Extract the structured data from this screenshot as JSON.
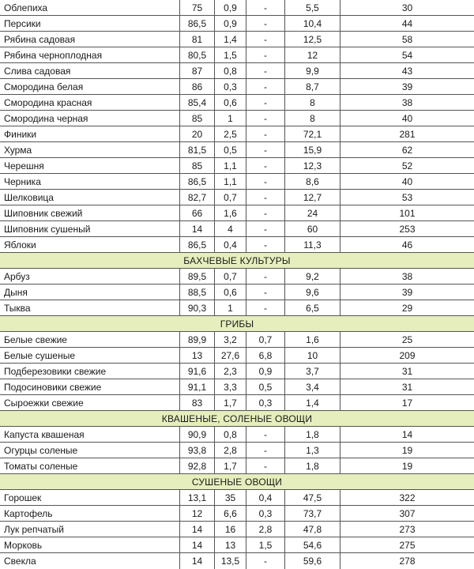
{
  "table": {
    "groups": [
      {
        "title": null,
        "rows": [
          [
            "Облепиха",
            "75",
            "0,9",
            "-",
            "5,5",
            "30"
          ],
          [
            "Персики",
            "86,5",
            "0,9",
            "-",
            "10,4",
            "44"
          ],
          [
            "Рябина садовая",
            "81",
            "1,4",
            "-",
            "12,5",
            "58"
          ],
          [
            "Рябина черноплодная",
            "80,5",
            "1,5",
            "-",
            "12",
            "54"
          ],
          [
            "Слива садовая",
            "87",
            "0,8",
            "-",
            "9,9",
            "43"
          ],
          [
            "Смородина белая",
            "86",
            "0,3",
            "-",
            "8,7",
            "39"
          ],
          [
            "Смородина красная",
            "85,4",
            "0,6",
            "-",
            "8",
            "38"
          ],
          [
            "Смородина черная",
            "85",
            "1",
            "-",
            "8",
            "40"
          ],
          [
            "Финики",
            "20",
            "2,5",
            "-",
            "72,1",
            "281"
          ],
          [
            "Хурма",
            "81,5",
            "0,5",
            "-",
            "15,9",
            "62"
          ],
          [
            "Черешня",
            "85",
            "1,1",
            "-",
            "12,3",
            "52"
          ],
          [
            "Черника",
            "86,5",
            "1,1",
            "-",
            "8,6",
            "40"
          ],
          [
            "Шелковица",
            "82,7",
            "0,7",
            "-",
            "12,7",
            "53"
          ],
          [
            "Шиповник свежий",
            "66",
            "1,6",
            "-",
            "24",
            "101"
          ],
          [
            "Шиповник сушеный",
            "14",
            "4",
            "-",
            "60",
            "253"
          ],
          [
            "Яблоки",
            "86,5",
            "0,4",
            "-",
            "11,3",
            "46"
          ]
        ]
      },
      {
        "title": "БАХЧЕВЫЕ КУЛЬТУРЫ",
        "rows": [
          [
            "Арбуз",
            "89,5",
            "0,7",
            "-",
            "9,2",
            "38"
          ],
          [
            "Дыня",
            "88,5",
            "0,6",
            "-",
            "9,6",
            "39"
          ],
          [
            "Тыква",
            "90,3",
            "1",
            "-",
            "6,5",
            "29"
          ]
        ]
      },
      {
        "title": "ГРИБЫ",
        "rows": [
          [
            "Белые свежие",
            "89,9",
            "3,2",
            "0,7",
            "1,6",
            "25"
          ],
          [
            "Белые сушеные",
            "13",
            "27,6",
            "6,8",
            "10",
            "209"
          ],
          [
            "Подберезовики свежие",
            "91,6",
            "2,3",
            "0,9",
            "3,7",
            "31"
          ],
          [
            "Подосиновики свежие",
            "91,1",
            "3,3",
            "0,5",
            "3,4",
            "31"
          ],
          [
            "Сыроежки свежие",
            "83",
            "1,7",
            "0,3",
            "1,4",
            "17"
          ]
        ]
      },
      {
        "title": "КВАШЕНЫЕ, СОЛЕНЫЕ ОВОЩИ",
        "rows": [
          [
            "Капуста квашеная",
            "90,9",
            "0,8",
            "-",
            "1,8",
            "14"
          ],
          [
            "Огурцы соленые",
            "93,8",
            "2,8",
            "-",
            "1,3",
            "19"
          ],
          [
            "Томаты соленые",
            "92,8",
            "1,7",
            "-",
            "1,8",
            "19"
          ]
        ]
      },
      {
        "title": "СУШЕНЫЕ ОВОЩИ",
        "rows": [
          [
            "Горошек",
            "13,1",
            "35",
            "0,4",
            "47,5",
            "322"
          ],
          [
            "Картофель",
            "12",
            "6,6",
            "0,3",
            "73,7",
            "307"
          ],
          [
            "Лук репчатый",
            "14",
            "16",
            "2,8",
            "47,8",
            "273"
          ],
          [
            "Морковь",
            "14",
            "13",
            "1,5",
            "54,6",
            "275"
          ],
          [
            "Свекла",
            "14",
            "13,5",
            "-",
            "59,6",
            "278"
          ]
        ]
      }
    ]
  }
}
